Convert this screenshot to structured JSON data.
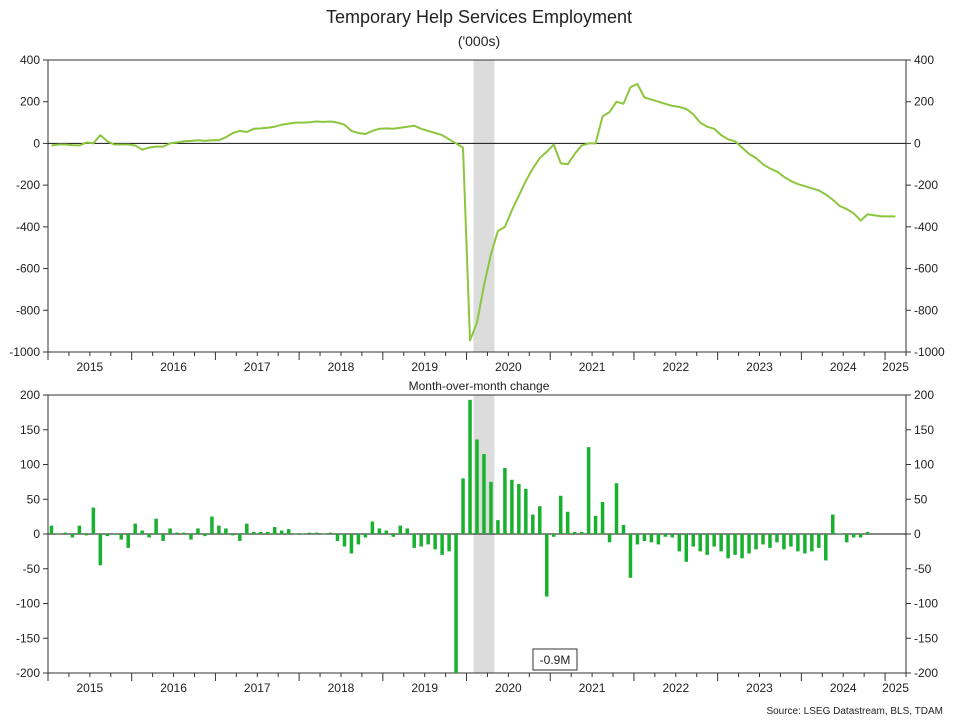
{
  "chart_data": [
    {
      "type": "line",
      "title": "Temporary Help Services Employment",
      "subtitle": "('000s)",
      "ylim": [
        -1000,
        400
      ],
      "yticks": [
        400,
        200,
        0,
        -200,
        -400,
        -600,
        -800,
        -1000
      ],
      "x_start": "2015-01",
      "years": [
        "2015",
        "2016",
        "2017",
        "2018",
        "2019",
        "2020",
        "2021",
        "2022",
        "2023",
        "2024",
        "2025"
      ],
      "recession_shading": [
        "2020-02",
        "2020-04"
      ],
      "zero_line": true,
      "series": [
        {
          "color": "#8cc63f",
          "values": [
            -10,
            -5,
            -5,
            -8,
            -10,
            5,
            0,
            40,
            10,
            -5,
            -5,
            -5,
            -10,
            -30,
            -20,
            -15,
            -15,
            0,
            5,
            10,
            12,
            15,
            12,
            15,
            15,
            30,
            50,
            60,
            55,
            70,
            72,
            75,
            80,
            90,
            95,
            100,
            100,
            102,
            105,
            103,
            105,
            100,
            90,
            60,
            50,
            45,
            60,
            70,
            72,
            70,
            75,
            80,
            85,
            70,
            60,
            50,
            40,
            20,
            0,
            -20,
            -945,
            -860,
            -680,
            -530,
            -420,
            -400,
            -320,
            -250,
            -180,
            -120,
            -70,
            -40,
            -5,
            -95,
            -100,
            -50,
            -10,
            0,
            0,
            130,
            150,
            200,
            190,
            270,
            285,
            220,
            210,
            200,
            190,
            180,
            175,
            165,
            140,
            100,
            80,
            70,
            40,
            20,
            10,
            -20,
            -50,
            -70,
            -100,
            -120,
            -135,
            -160,
            -180,
            -195,
            -205,
            -215,
            -225,
            -245,
            -270,
            -300,
            -315,
            -335,
            -370,
            -340,
            -345,
            -350,
            -350,
            -350
          ]
        }
      ]
    },
    {
      "type": "bar",
      "title": "Month-over-month change",
      "ylim": [
        -200,
        200
      ],
      "yticks": [
        200,
        150,
        100,
        50,
        0,
        -50,
        -100,
        -150,
        -200
      ],
      "x_start": "2015-01",
      "years": [
        "2015",
        "2016",
        "2017",
        "2018",
        "2019",
        "2020",
        "2021",
        "2022",
        "2023",
        "2024",
        "2025"
      ],
      "recession_shading": [
        "2020-02",
        "2020-04"
      ],
      "annotation": "-0.9M",
      "series": [
        {
          "color": "#17b12e",
          "values": [
            12,
            1,
            2,
            -5,
            12,
            -2,
            38,
            -45,
            -3,
            -1,
            -8,
            -20,
            15,
            5,
            -5,
            22,
            -10,
            8,
            2,
            2,
            -8,
            8,
            -3,
            25,
            12,
            8,
            -2,
            -10,
            15,
            3,
            3,
            3,
            10,
            5,
            7,
            1,
            1,
            2,
            2,
            1,
            2,
            -10,
            -18,
            -28,
            -15,
            -5,
            18,
            8,
            5,
            -4,
            12,
            8,
            -20,
            -18,
            -15,
            -22,
            -30,
            -25,
            -200,
            80,
            193,
            136,
            115,
            75,
            20,
            95,
            78,
            72,
            65,
            28,
            40,
            -90,
            -4,
            55,
            32,
            3,
            3,
            125,
            26,
            46,
            -12,
            73,
            13,
            -63,
            -15,
            -10,
            -12,
            -15,
            -4,
            -5,
            -25,
            -40,
            -18,
            -25,
            -30,
            -18,
            -25,
            -35,
            -30,
            -35,
            -28,
            -22,
            -15,
            -20,
            -12,
            -22,
            -18,
            -25,
            -28,
            -25,
            -20,
            -38,
            28,
            1,
            -12,
            -5,
            -5,
            3
          ]
        }
      ]
    }
  ],
  "source": "Source: LSEG Datastream, BLS, TDAM"
}
